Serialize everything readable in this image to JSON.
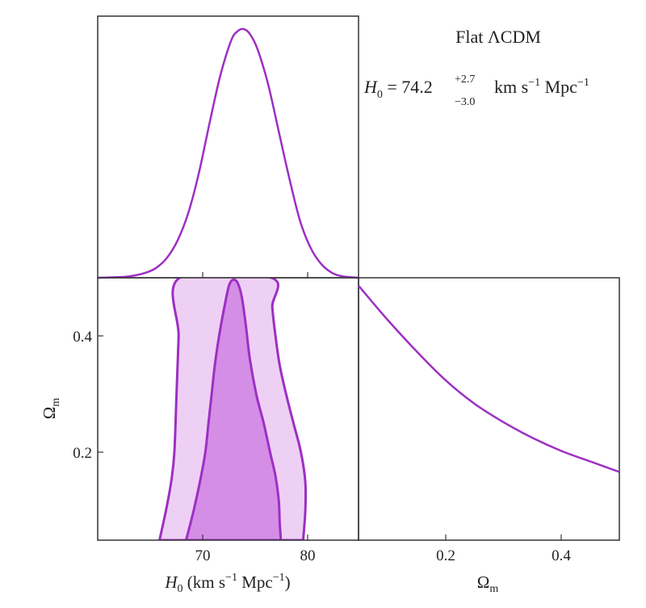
{
  "chart_data": {
    "type": "corner",
    "color": "#9d2fc3",
    "fill_inner": "#d48ee6",
    "fill_outer": "#eed0f5",
    "annotation": {
      "model": "Flat ΛCDM",
      "param": "H",
      "param_sub": "0",
      "eq": " = 74.2",
      "err_plus": "+2.7",
      "err_minus": "−3.0",
      "unit_main": "km s",
      "unit_exp1": "−1",
      "unit_mid": " Mpc",
      "unit_exp2": "−1"
    },
    "x_axis_label": {
      "param": "H",
      "sub": "0",
      "unit_a": " (km s",
      "exp1": "−1",
      "unit_b": " Mpc",
      "exp2": "−1",
      "close": ")"
    },
    "omega_label": {
      "symbol": "Ω",
      "sub": "m"
    },
    "panels": [
      {
        "id": "H0-marginal",
        "type": "line",
        "xlim": [
          60.5,
          85
        ],
        "x": [
          60.5,
          62,
          63.5,
          65,
          66,
          67,
          68,
          69,
          70,
          71,
          72,
          73,
          73.6,
          74.2,
          74.8,
          75.5,
          76.5,
          77.5,
          78.5,
          79.5,
          80.5,
          81.5,
          82.5,
          83.5,
          85
        ],
        "y": [
          0.0,
          0.002,
          0.006,
          0.02,
          0.04,
          0.08,
          0.15,
          0.26,
          0.42,
          0.62,
          0.81,
          0.95,
          0.99,
          1.0,
          0.98,
          0.92,
          0.78,
          0.59,
          0.4,
          0.23,
          0.12,
          0.055,
          0.02,
          0.006,
          0.0
        ]
      },
      {
        "id": "H0-Om-contours",
        "type": "contour",
        "xlim": [
          60.5,
          85
        ],
        "ylim": [
          0.05,
          0.5
        ],
        "x_ticks": [
          70,
          80
        ],
        "y_ticks": [
          0.2,
          0.4
        ],
        "outer_left": [
          [
            66.3,
            0.05
          ],
          [
            66.9,
            0.1
          ],
          [
            67.4,
            0.15
          ],
          [
            67.7,
            0.2
          ],
          [
            67.9,
            0.3
          ],
          [
            68.1,
            0.4
          ],
          [
            68.2,
            0.5
          ]
        ],
        "outer_right": [
          [
            79.8,
            0.05
          ],
          [
            80.0,
            0.1
          ],
          [
            80.0,
            0.15
          ],
          [
            79.6,
            0.2
          ],
          [
            78.9,
            0.25
          ],
          [
            78.2,
            0.3
          ],
          [
            77.6,
            0.35
          ],
          [
            77.2,
            0.4
          ],
          [
            76.9,
            0.45
          ],
          [
            76.8,
            0.5
          ]
        ],
        "inner": [
          [
            68.8,
            0.05
          ],
          [
            69.5,
            0.1
          ],
          [
            70.1,
            0.15
          ],
          [
            70.6,
            0.2
          ],
          [
            70.9,
            0.25
          ],
          [
            71.2,
            0.3
          ],
          [
            71.5,
            0.35
          ],
          [
            71.9,
            0.4
          ],
          [
            72.4,
            0.45
          ],
          [
            72.9,
            0.49
          ],
          [
            73.5,
            0.495
          ],
          [
            74.0,
            0.47
          ],
          [
            74.4,
            0.42
          ],
          [
            74.8,
            0.36
          ],
          [
            75.4,
            0.3
          ],
          [
            76.1,
            0.25
          ],
          [
            76.7,
            0.2
          ],
          [
            77.2,
            0.16
          ],
          [
            77.5,
            0.12
          ],
          [
            77.6,
            0.08
          ],
          [
            77.7,
            0.05
          ]
        ]
      },
      {
        "id": "Om-marginal",
        "type": "line",
        "xlim": [
          0.05,
          0.5
        ],
        "x_ticks": [
          0.2,
          0.4
        ],
        "x": [
          0.05,
          0.1,
          0.15,
          0.2,
          0.25,
          0.3,
          0.35,
          0.4,
          0.45,
          0.5
        ],
        "y": [
          0.97,
          0.84,
          0.72,
          0.61,
          0.52,
          0.45,
          0.39,
          0.34,
          0.3,
          0.26
        ]
      }
    ]
  }
}
